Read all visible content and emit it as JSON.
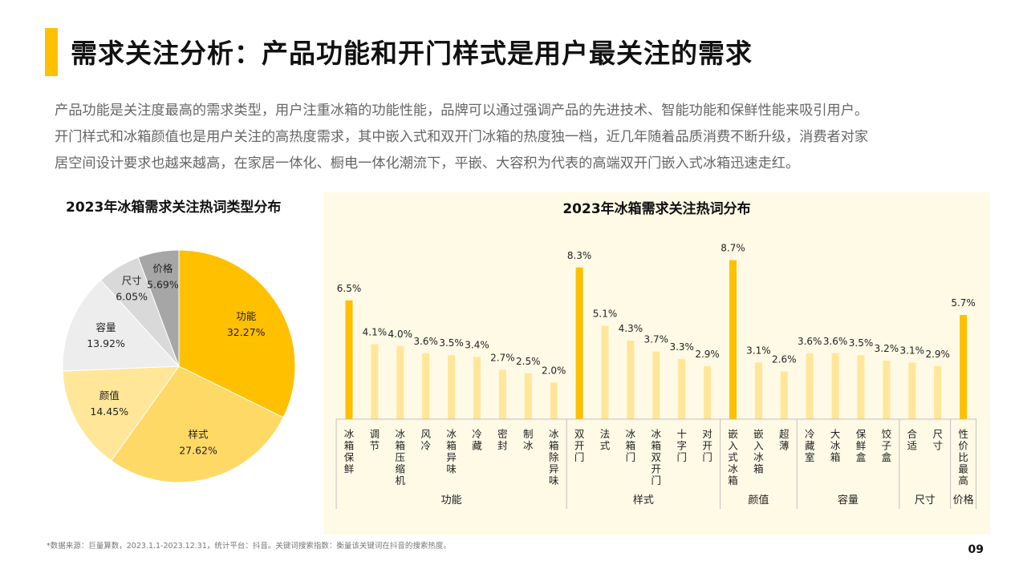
{
  "title": "需求关注分析：产品功能和开门样式是用户最关注的需求",
  "intro": [
    "产品功能是关注度最高的需求类型，用户注重冰箱的功能性能，品牌可以通过强调产品的先进技术、智能功能和保鲜性能来吸引用户。",
    "开门样式和冰箱颜值也是用户关注的高热度需求，其中嵌入式和双开门冰箱的热度独一档，近几年随着品质消费不断升级，消费者对家",
    "居空间设计要求也越来越高，在家居一体化、橱电一体化潮流下，平嵌、大容积为代表的高端双开门嵌入式冰箱迅速走红。"
  ],
  "footnote": "*数据来源：巨量算数，2023.1.1-2023.12.31，统计平台：抖音。关键词搜索指数：衡量该关键词在抖音的搜索热度。",
  "page_number": "09",
  "colors": {
    "accent": "#FFC000",
    "bar_highlight": "#FFC000",
    "bar_normal": "#FFE699",
    "panel_bg": "#FFFAE6"
  },
  "chart_data": [
    {
      "type": "pie",
      "title": "2023年冰箱需求关注热词类型分布",
      "slices": [
        {
          "label": "功能",
          "value": 32.27,
          "display": "32.27%",
          "color": "#FFC000"
        },
        {
          "label": "样式",
          "value": 27.62,
          "display": "27.62%",
          "color": "#FFD966"
        },
        {
          "label": "颜值",
          "value": 14.45,
          "display": "14.45%",
          "color": "#FFE699"
        },
        {
          "label": "容量",
          "value": 13.92,
          "display": "13.92%",
          "color": "#EDEDED"
        },
        {
          "label": "尺寸",
          "value": 6.05,
          "display": "6.05%",
          "color": "#D9D9D9"
        },
        {
          "label": "价格",
          "value": 5.69,
          "display": "5.69%",
          "color": "#A6A6A6"
        }
      ]
    },
    {
      "type": "bar",
      "title": "2023年冰箱需求关注热词分布",
      "categories": [
        "冰箱保鲜",
        "调节",
        "冰箱压缩机",
        "风冷",
        "冰箱异味",
        "冷藏",
        "密封",
        "制冰",
        "冰箱除异味",
        "双开门",
        "法式",
        "冰箱门",
        "冰箱双开门",
        "十字门",
        "对开门",
        "嵌入式冰箱",
        "嵌入冰箱",
        "超薄",
        "冷藏室",
        "大冰箱",
        "保鲜盒",
        "饺子盒",
        "合适",
        "尺寸",
        "性价比最高"
      ],
      "values": [
        6.5,
        4.1,
        4.0,
        3.6,
        3.5,
        3.4,
        2.7,
        2.5,
        2.0,
        8.3,
        5.1,
        4.3,
        3.7,
        3.3,
        2.9,
        8.7,
        3.1,
        2.6,
        3.6,
        3.6,
        3.5,
        3.2,
        3.1,
        2.9,
        5.7
      ],
      "value_labels": [
        "6.5%",
        "4.1%",
        "4.0%",
        "3.6%",
        "3.5%",
        "3.4%",
        "2.7%",
        "2.5%",
        "2.0%",
        "8.3%",
        "5.1%",
        "4.3%",
        "3.7%",
        "3.3%",
        "2.9%",
        "8.7%",
        "3.1%",
        "2.6%",
        "3.6%",
        "3.6%",
        "3.5%",
        "3.2%",
        "3.1%",
        "2.9%",
        "5.7%"
      ],
      "highlight": [
        true,
        false,
        false,
        false,
        false,
        false,
        false,
        false,
        false,
        true,
        false,
        false,
        false,
        false,
        false,
        true,
        false,
        false,
        false,
        false,
        false,
        false,
        false,
        false,
        true
      ],
      "groups": [
        {
          "name": "功能",
          "start": 0,
          "count": 9
        },
        {
          "name": "样式",
          "start": 9,
          "count": 6
        },
        {
          "name": "颜值",
          "start": 15,
          "count": 3
        },
        {
          "name": "容量",
          "start": 18,
          "count": 4
        },
        {
          "name": "尺寸",
          "start": 22,
          "count": 2
        },
        {
          "name": "价格",
          "start": 24,
          "count": 1
        }
      ]
    }
  ]
}
